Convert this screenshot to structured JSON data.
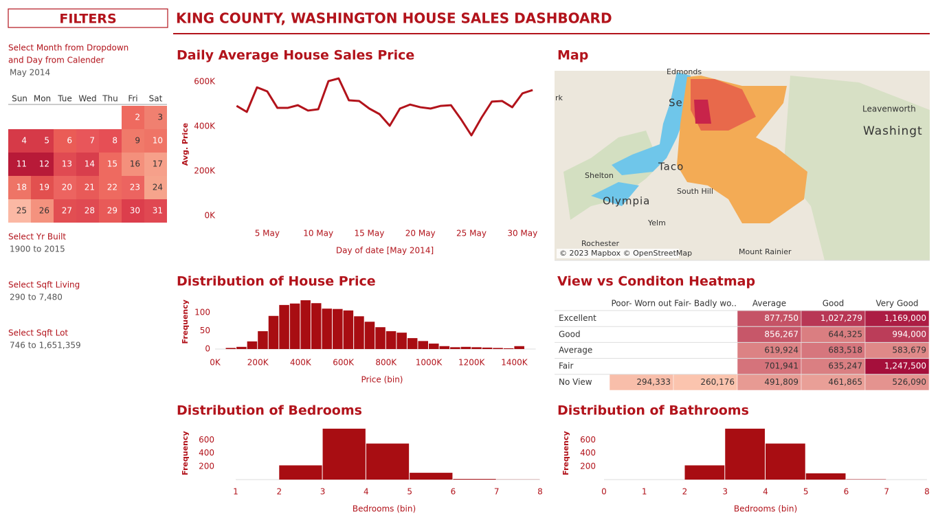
{
  "title": "KING COUNTY, WASHINGTON HOUSE SALES DASHBOARD",
  "filters": {
    "heading": "FILTERS",
    "month_label": [
      "Select Month from Dropdown",
      "and Day from Calender"
    ],
    "month_value": "May 2014",
    "items": [
      {
        "label": "Select Yr Built",
        "value": "1900 to 2015"
      },
      {
        "label": "Select Sqft Living",
        "value": "290 to 7,480"
      },
      {
        "label": "Select Sqft Lot",
        "value": "746 to 1,651,359"
      }
    ]
  },
  "calendar": {
    "weekdays": [
      "Sun",
      "Mon",
      "Tue",
      "Wed",
      "Thu",
      "Fri",
      "Sat"
    ],
    "days": [
      2,
      3,
      4,
      5,
      6,
      7,
      8,
      9,
      10,
      11,
      12,
      13,
      14,
      15,
      16,
      17,
      18,
      19,
      20,
      21,
      22,
      23,
      24,
      25,
      26,
      27,
      28,
      29,
      30,
      31
    ],
    "colors": [
      "#ee6a5f",
      "#f08070",
      "#d63a48",
      "#d63a48",
      "#ea5c56",
      "#e8565a",
      "#e64f55",
      "#f07a6a",
      "#ef7466",
      "#b81a38",
      "#b81a38",
      "#e04a52",
      "#d83e4c",
      "#ee6a60",
      "#f4907c",
      "#f6a08a",
      "#ee7466",
      "#e2504f",
      "#ec6460",
      "#e85a58",
      "#ee6a60",
      "#ec6460",
      "#f6a48c",
      "#fbb8a4",
      "#f4927e",
      "#e24e52",
      "#e04a52",
      "#e85a58",
      "#dc3e4c",
      "#e04852"
    ]
  },
  "map": {
    "title": "Map",
    "labels": [
      "Edmonds",
      "Se",
      "Leavenworth",
      "Washingt",
      "Shelton",
      "Taco",
      "Olympia",
      "South Hill",
      "Yelm",
      "Rochester",
      "Mount Rainier",
      "rk"
    ],
    "attribution": "© 2023 Mapbox © OpenStreetMap"
  },
  "chart_data": [
    {
      "type": "line",
      "title": "Daily Average House Sales Price",
      "x_label": "Day of date [May 2014]",
      "y_label": "Avg. Price",
      "x": [
        2,
        3,
        4,
        5,
        6,
        7,
        8,
        9,
        10,
        11,
        12,
        13,
        14,
        15,
        16,
        17,
        18,
        19,
        20,
        21,
        22,
        23,
        24,
        25,
        26,
        27,
        28,
        29,
        30,
        31
      ],
      "values": [
        492000,
        465000,
        575000,
        557000,
        483000,
        483000,
        495000,
        471000,
        477000,
        603000,
        615000,
        517000,
        514000,
        480000,
        455000,
        403000,
        480000,
        498000,
        486000,
        480000,
        492000,
        495000,
        431000,
        360000,
        440000,
        511000,
        514000,
        486000,
        548000,
        563000
      ],
      "color": "#b2131b",
      "xlim": [
        0.5,
        32
      ],
      "ylim": [
        0,
        640000
      ],
      "xticks": [
        {
          "value": 5,
          "label": "5 May"
        },
        {
          "value": 10,
          "label": "10 May"
        },
        {
          "value": 15,
          "label": "15 May"
        },
        {
          "value": 20,
          "label": "20 May"
        },
        {
          "value": 25,
          "label": "25 May"
        },
        {
          "value": 30,
          "label": "30 May"
        }
      ],
      "yticks": [
        {
          "value": 0,
          "label": "0K"
        },
        {
          "value": 200000,
          "label": "200K"
        },
        {
          "value": 400000,
          "label": "400K"
        },
        {
          "value": 600000,
          "label": "600K"
        }
      ]
    },
    {
      "type": "histogram",
      "title": "Distribution of House Price",
      "x_label": "Price (bin)",
      "y_label": "Frequency",
      "bins": [
        50000,
        100000,
        150000,
        200000,
        250000,
        300000,
        350000,
        400000,
        450000,
        500000,
        550000,
        600000,
        650000,
        700000,
        750000,
        800000,
        850000,
        900000,
        950000,
        1000000,
        1050000,
        1100000,
        1150000,
        1200000,
        1250000,
        1300000,
        1350000,
        1400000,
        1450000
      ],
      "values": [
        3,
        6,
        21,
        49,
        91,
        121,
        125,
        134,
        126,
        111,
        110,
        106,
        90,
        75,
        60,
        49,
        45,
        30,
        22,
        15,
        8,
        5,
        6,
        5,
        4,
        3,
        2,
        8
      ],
      "color": "#a80d12",
      "xlim": [
        0,
        1500000
      ],
      "ylim": [
        0,
        150
      ],
      "xticks": [
        {
          "value": 0,
          "label": "0K"
        },
        {
          "value": 200000,
          "label": "200K"
        },
        {
          "value": 400000,
          "label": "400K"
        },
        {
          "value": 600000,
          "label": "600K"
        },
        {
          "value": 800000,
          "label": "800K"
        },
        {
          "value": 1000000,
          "label": "1000K"
        },
        {
          "value": 1200000,
          "label": "1200K"
        },
        {
          "value": 1400000,
          "label": "1400K"
        }
      ],
      "yticks": [
        0,
        50,
        100
      ]
    },
    {
      "type": "heatmap",
      "title": "View vs Conditon Heatmap",
      "columns": [
        "Poor- Worn out",
        "Fair- Badly wo..",
        "Average",
        "Good",
        "Very Good"
      ],
      "rows": [
        "Excellent",
        "Good",
        "Average",
        "Fair",
        "No View"
      ],
      "values": [
        [
          null,
          null,
          877750,
          1027279,
          1169000
        ],
        [
          null,
          null,
          856267,
          644325,
          994000
        ],
        [
          null,
          null,
          619924,
          683518,
          583679
        ],
        [
          null,
          null,
          701941,
          635247,
          1247500
        ],
        [
          294333,
          260176,
          491809,
          461865,
          526090
        ]
      ],
      "value_labels": [
        [
          null,
          null,
          "877,750",
          "1,027,279",
          "1,169,000"
        ],
        [
          null,
          null,
          "856,267",
          "644,325",
          "994,000"
        ],
        [
          null,
          null,
          "619,924",
          "683,518",
          "583,679"
        ],
        [
          null,
          null,
          "701,941",
          "635,247",
          "1,247,500"
        ],
        [
          "294,333",
          "260,176",
          "491,809",
          "461,865",
          "526,090"
        ]
      ],
      "color_range": [
        "#fbc4ae",
        "#a50f3b"
      ]
    },
    {
      "type": "histogram",
      "title": "Distribution of Bedrooms",
      "x_label": "Bedrooms (bin)",
      "y_label": "Frequency",
      "bins": [
        1,
        2,
        3,
        4,
        5,
        6,
        7,
        8
      ],
      "values": [
        0,
        215,
        770,
        545,
        103,
        10,
        2
      ],
      "color": "#a80d12",
      "xlim": [
        1,
        8
      ],
      "ylim": [
        0,
        800
      ],
      "xticks": [
        1,
        2,
        3,
        4,
        5,
        6,
        7,
        8
      ],
      "yticks": [
        200,
        400,
        600
      ]
    },
    {
      "type": "histogram",
      "title": "Distribution of Bathrooms",
      "x_label": "Bedrooms (bin)",
      "y_label": "Frequency",
      "bins": [
        0,
        1,
        2,
        3,
        4,
        5,
        6,
        7,
        8
      ],
      "values": [
        0,
        0,
        215,
        770,
        545,
        95,
        5,
        0
      ],
      "color": "#a80d12",
      "xlim": [
        0,
        8
      ],
      "ylim": [
        0,
        800
      ],
      "xticks": [
        0,
        1,
        2,
        3,
        4,
        5,
        6,
        7,
        8
      ],
      "yticks": [
        200,
        400,
        600
      ]
    }
  ]
}
